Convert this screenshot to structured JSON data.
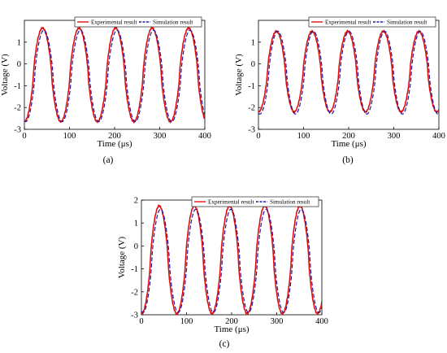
{
  "chart_data": [
    {
      "panel": "(a)",
      "type": "line",
      "xlabel": "Time (μs)",
      "ylabel": "Voltage (V)",
      "xlim": [
        0,
        400
      ],
      "ylim": [
        -3,
        2
      ],
      "xticks": [
        0,
        100,
        200,
        300,
        400
      ],
      "yticks": [
        -3,
        -2,
        -1,
        0,
        1
      ],
      "grid": false,
      "legend_position": "top-right",
      "period": 81,
      "series": [
        {
          "name": "Experimental result",
          "color": "#e01010",
          "style": "solid",
          "max": 1.65,
          "min": -2.65,
          "phase": 0
        },
        {
          "name": "Simulation result",
          "color": "#1a1aa8",
          "style": "dashed",
          "max": 1.55,
          "min": -2.65,
          "phase": 3
        }
      ]
    },
    {
      "panel": "(b)",
      "type": "line",
      "xlabel": "Time (μs)",
      "ylabel": "Voltage (V)",
      "xlim": [
        0,
        400
      ],
      "ylim": [
        -3,
        2
      ],
      "xticks": [
        0,
        100,
        200,
        300,
        400
      ],
      "yticks": [
        -3,
        -2,
        -1,
        0,
        1
      ],
      "grid": false,
      "legend_position": "top-right",
      "period": 79,
      "series": [
        {
          "name": "Experimental result",
          "color": "#e01010",
          "style": "solid",
          "max": 1.5,
          "min": -2.2,
          "phase": 0
        },
        {
          "name": "Simulation result",
          "color": "#1a1aa8",
          "style": "dashed",
          "max": 1.5,
          "min": -2.3,
          "phase": 3
        }
      ]
    },
    {
      "panel": "(c)",
      "type": "line",
      "xlabel": "Time (μs)",
      "ylabel": "Voltage (V)",
      "xlim": [
        0,
        400
      ],
      "ylim": [
        -3,
        2
      ],
      "xticks": [
        0,
        100,
        200,
        300,
        400
      ],
      "yticks": [
        -3,
        -2,
        -1,
        0,
        1,
        2
      ],
      "grid": false,
      "legend_position": "top-right",
      "period": 78,
      "series": [
        {
          "name": "Experimental result",
          "color": "#e01010",
          "style": "solid",
          "max": 1.75,
          "min": -2.95,
          "phase": 0
        },
        {
          "name": "Simulation result",
          "color": "#1a1aa8",
          "style": "dashed",
          "max": 1.6,
          "min": -2.9,
          "phase": 3
        }
      ]
    }
  ]
}
